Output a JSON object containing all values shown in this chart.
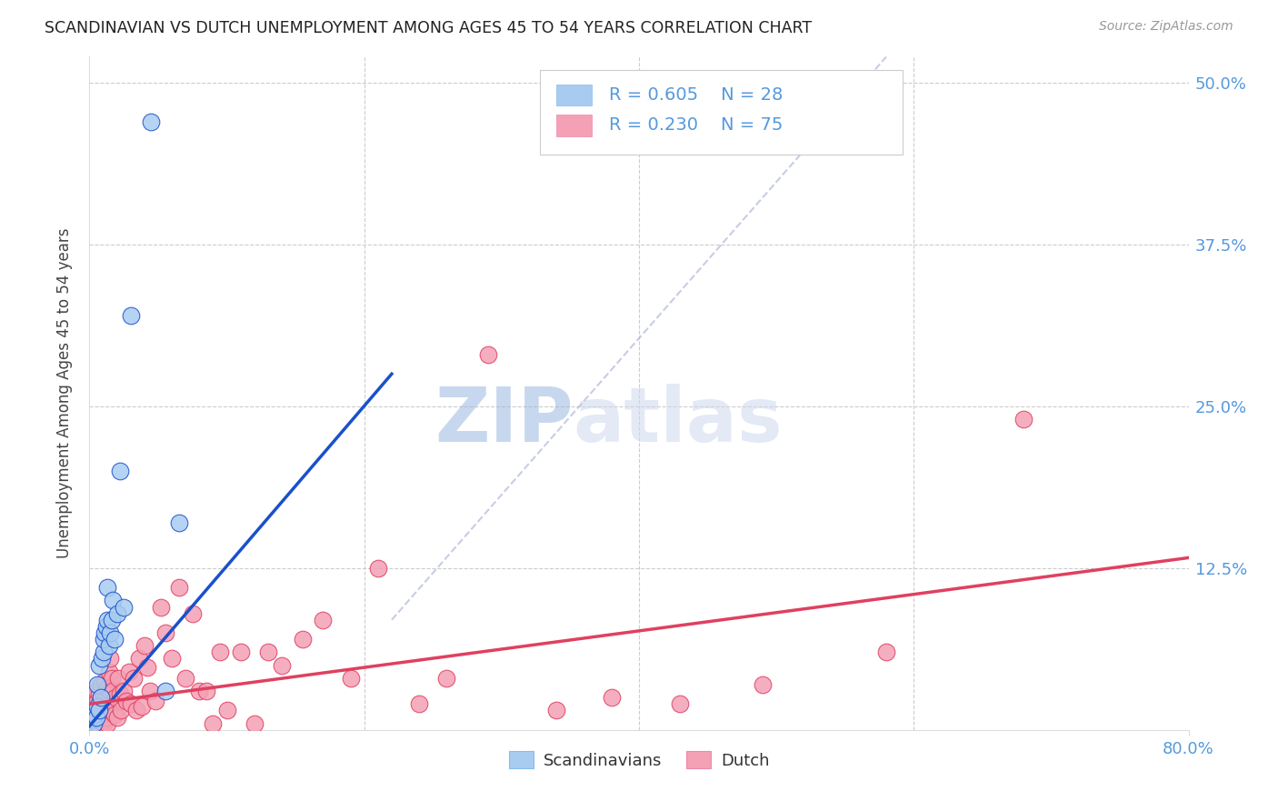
{
  "title": "SCANDINAVIAN VS DUTCH UNEMPLOYMENT AMONG AGES 45 TO 54 YEARS CORRELATION CHART",
  "source": "Source: ZipAtlas.com",
  "ylabel": "Unemployment Among Ages 45 to 54 years",
  "ytick_labels": [
    "",
    "12.5%",
    "25.0%",
    "37.5%",
    "50.0%"
  ],
  "ytick_values": [
    0,
    0.125,
    0.25,
    0.375,
    0.5
  ],
  "xlim": [
    0.0,
    0.8
  ],
  "ylim": [
    0.0,
    0.52
  ],
  "color_scandinavian": "#a8ccf0",
  "color_dutch": "#f4a0b5",
  "color_scandinavian_line": "#1a50cc",
  "color_dutch_line": "#e04060",
  "color_dashed": "#b0b8d8",
  "watermark_zip": "ZIP",
  "watermark_atlas": "atlas",
  "watermark_color": "#ccd8ee",
  "scan_line_x0": 0.0,
  "scan_line_y0": 0.003,
  "scan_line_x1": 0.22,
  "scan_line_y1": 0.275,
  "dutch_line_x0": 0.0,
  "dutch_line_y0": 0.02,
  "dutch_line_x1": 0.8,
  "dutch_line_y1": 0.133,
  "dashed_line_x0": 0.22,
  "dashed_line_y0": 0.085,
  "dashed_line_x1": 0.58,
  "dashed_line_y1": 0.52,
  "scandinavian_x": [
    0.002,
    0.003,
    0.004,
    0.005,
    0.006,
    0.006,
    0.007,
    0.007,
    0.008,
    0.009,
    0.01,
    0.01,
    0.011,
    0.012,
    0.013,
    0.013,
    0.014,
    0.015,
    0.016,
    0.017,
    0.018,
    0.02,
    0.022,
    0.025,
    0.03,
    0.045,
    0.055,
    0.065
  ],
  "scandinavian_y": [
    0.008,
    0.005,
    0.012,
    0.01,
    0.018,
    0.035,
    0.015,
    0.05,
    0.025,
    0.055,
    0.06,
    0.07,
    0.075,
    0.08,
    0.085,
    0.11,
    0.065,
    0.075,
    0.085,
    0.1,
    0.07,
    0.09,
    0.2,
    0.095,
    0.32,
    0.47,
    0.03,
    0.16
  ],
  "dutch_x": [
    0.002,
    0.003,
    0.003,
    0.004,
    0.004,
    0.005,
    0.005,
    0.006,
    0.006,
    0.007,
    0.007,
    0.008,
    0.008,
    0.009,
    0.009,
    0.01,
    0.01,
    0.011,
    0.011,
    0.012,
    0.012,
    0.013,
    0.013,
    0.014,
    0.014,
    0.015,
    0.015,
    0.016,
    0.017,
    0.018,
    0.019,
    0.02,
    0.021,
    0.022,
    0.023,
    0.025,
    0.027,
    0.029,
    0.03,
    0.032,
    0.034,
    0.036,
    0.038,
    0.04,
    0.042,
    0.044,
    0.048,
    0.052,
    0.055,
    0.06,
    0.065,
    0.07,
    0.075,
    0.08,
    0.085,
    0.09,
    0.095,
    0.1,
    0.11,
    0.12,
    0.13,
    0.14,
    0.155,
    0.17,
    0.19,
    0.21,
    0.24,
    0.26,
    0.29,
    0.34,
    0.38,
    0.43,
    0.49,
    0.58,
    0.68
  ],
  "dutch_y": [
    0.015,
    0.008,
    0.025,
    0.005,
    0.02,
    0.01,
    0.03,
    0.005,
    0.022,
    0.008,
    0.028,
    0.012,
    0.035,
    0.006,
    0.02,
    0.005,
    0.028,
    0.015,
    0.038,
    0.01,
    0.025,
    0.005,
    0.032,
    0.015,
    0.045,
    0.03,
    0.055,
    0.04,
    0.03,
    0.012,
    0.025,
    0.01,
    0.04,
    0.028,
    0.015,
    0.03,
    0.022,
    0.045,
    0.02,
    0.04,
    0.015,
    0.055,
    0.018,
    0.065,
    0.048,
    0.03,
    0.022,
    0.095,
    0.075,
    0.055,
    0.11,
    0.04,
    0.09,
    0.03,
    0.03,
    0.005,
    0.06,
    0.015,
    0.06,
    0.005,
    0.06,
    0.05,
    0.07,
    0.085,
    0.04,
    0.125,
    0.02,
    0.04,
    0.29,
    0.015,
    0.025,
    0.02,
    0.035,
    0.06,
    0.24
  ]
}
